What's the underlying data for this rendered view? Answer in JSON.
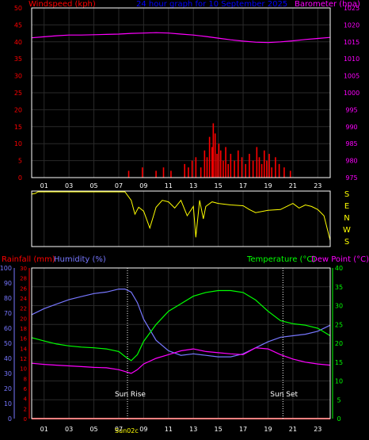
{
  "header": {
    "windspeed_label": "Windspeed (kph)",
    "title": "24 hour graph for  10 September 2025",
    "barometer_label": "Barometer (hpa)"
  },
  "wind_panel": {
    "compass_letters": [
      "S",
      "E",
      "N",
      "W",
      "S"
    ]
  },
  "bottom_header": {
    "rainfall_label": "Rainfall (mm)",
    "humidity_label": "Humidity (%)",
    "temperature_label": "Temperature (°C)",
    "dewpoint_label": "Dew Point (°C)"
  },
  "annotations": {
    "sunrise": "Sun Rise",
    "sunset": "Sun Set",
    "sunrise_time": "Sun02c"
  },
  "colors": {
    "wind": "#ff0000",
    "barometer": "#ff00ff",
    "direction": "#ffff00",
    "humidity": "#7777ff",
    "temperature": "#00ff00",
    "dewpoint": "#ff00ff",
    "rain": "#ff0000",
    "title": "#0000ff",
    "grid": "#2a2a2a"
  },
  "chart_data": [
    {
      "type": "bar",
      "title": "24 hour graph for  10 September 2025",
      "x_tick_labels": [
        "01",
        "03",
        "05",
        "07",
        "09",
        "11",
        "13",
        "15",
        "17",
        "19",
        "21",
        "23"
      ],
      "xlim": [
        0,
        24
      ],
      "y_left": {
        "label": "Windspeed (kph)",
        "ylim": [
          0,
          50
        ],
        "ticks": [
          0,
          5,
          10,
          15,
          20,
          25,
          30,
          35,
          40,
          45,
          50
        ]
      },
      "y_right": {
        "label": "Barometer (hpa)",
        "ylim": [
          975,
          1025
        ],
        "ticks": [
          975,
          980,
          985,
          990,
          995,
          1000,
          1005,
          1010,
          1015,
          1020,
          1025
        ]
      },
      "series": [
        {
          "name": "Windspeed (kph)",
          "type": "bar",
          "x": [
            7.8,
            8.9,
            10.0,
            10.6,
            11.2,
            12.3,
            12.6,
            12.9,
            13.2,
            13.6,
            13.9,
            14.1,
            14.3,
            14.5,
            14.6,
            14.75,
            14.9,
            15.05,
            15.2,
            15.4,
            15.6,
            15.8,
            16.0,
            16.3,
            16.6,
            16.9,
            17.2,
            17.5,
            17.8,
            18.1,
            18.3,
            18.5,
            18.7,
            18.9,
            19.1,
            19.3,
            19.6,
            19.9,
            20.3,
            20.8
          ],
          "values": [
            2,
            3,
            2,
            3,
            2,
            4,
            3,
            5,
            6,
            3,
            8,
            6,
            12,
            9,
            16,
            13,
            7,
            10,
            8,
            5,
            9,
            4,
            7,
            5,
            8,
            6,
            4,
            7,
            5,
            9,
            6,
            4,
            8,
            5,
            7,
            3,
            6,
            4,
            3,
            2
          ]
        },
        {
          "name": "Barometer (hpa)",
          "type": "line",
          "x": [
            0,
            1,
            2,
            3,
            4,
            5,
            6,
            7,
            8,
            9,
            10,
            11,
            12,
            13,
            14,
            15,
            16,
            17,
            18,
            19,
            20,
            21,
            22,
            23,
            24
          ],
          "values": [
            1016.2,
            1016.5,
            1016.8,
            1017.0,
            1017.0,
            1017.1,
            1017.2,
            1017.3,
            1017.5,
            1017.6,
            1017.7,
            1017.6,
            1017.3,
            1017.0,
            1016.6,
            1016.1,
            1015.6,
            1015.2,
            1014.9,
            1014.8,
            1015.0,
            1015.3,
            1015.7,
            1016.0,
            1016.3
          ]
        }
      ]
    },
    {
      "type": "line",
      "x_tick_labels": [
        "01",
        "03",
        "05",
        "07",
        "09",
        "11",
        "13",
        "15",
        "17",
        "19",
        "21",
        "23"
      ],
      "xlim": [
        0,
        24
      ],
      "y_directions": [
        "S",
        "E",
        "N",
        "W",
        "S"
      ],
      "series": [
        {
          "name": "Wind direction",
          "x": [
            0,
            0.3,
            0.5,
            1,
            2,
            3,
            4,
            5,
            6,
            7,
            7.5,
            8,
            8.3,
            8.6,
            9,
            9.5,
            10,
            10.5,
            11,
            11.5,
            12,
            12.5,
            13,
            13.2,
            13.5,
            13.8,
            14,
            14.5,
            15,
            16,
            17,
            17.5,
            18,
            19,
            20,
            20.5,
            21,
            21.5,
            22,
            22.5,
            23,
            23.5,
            24
          ],
          "values": [
            340,
            345,
            355,
            355,
            355,
            355,
            355,
            355,
            355,
            355,
            355,
            300,
            210,
            255,
            230,
            120,
            255,
            300,
            290,
            250,
            300,
            200,
            260,
            60,
            300,
            180,
            260,
            290,
            280,
            270,
            265,
            240,
            220,
            235,
            240,
            260,
            280,
            250,
            270,
            260,
            240,
            200,
            40
          ]
        }
      ]
    },
    {
      "type": "line",
      "sunrise_hour": 7.7,
      "sunset_hour": 20.2,
      "x_tick_labels": [
        "01",
        "03",
        "05",
        "07",
        "09",
        "11",
        "13",
        "15",
        "17",
        "19",
        "21",
        "23"
      ],
      "xlim": [
        0,
        24
      ],
      "y_humidity": {
        "label": "Humidity (%)",
        "ylim": [
          0,
          100
        ],
        "ticks": [
          0,
          10,
          20,
          30,
          40,
          50,
          60,
          70,
          80,
          90,
          100
        ]
      },
      "y_rain": {
        "label": "Rainfall (mm)",
        "ylim": [
          0,
          30
        ],
        "ticks": [
          0,
          2,
          4,
          6,
          8,
          10,
          12,
          14,
          16,
          18,
          20,
          22,
          24,
          26,
          28,
          30
        ]
      },
      "y_temp": {
        "label": "Temperature (°C)",
        "ylim": [
          0,
          40
        ],
        "ticks": [
          0,
          5,
          10,
          15,
          20,
          25,
          30,
          35,
          40
        ]
      },
      "series": [
        {
          "name": "Humidity (%)",
          "x": [
            0,
            1,
            2,
            3,
            4,
            5,
            6,
            7,
            7.5,
            8,
            8.5,
            9,
            10,
            11,
            12,
            13,
            14,
            15,
            16,
            17,
            18,
            19,
            20,
            21,
            22,
            23,
            24
          ],
          "values": [
            69,
            73,
            76,
            79,
            81,
            83,
            84,
            86,
            86,
            84,
            77,
            66,
            52,
            45,
            42,
            43,
            42,
            41,
            41,
            43,
            47,
            51,
            54,
            55,
            56,
            58,
            62
          ]
        },
        {
          "name": "Temperature (°C)",
          "x": [
            0,
            1,
            2,
            3,
            4,
            5,
            6,
            7,
            7.5,
            8,
            8.5,
            9,
            10,
            11,
            12,
            13,
            14,
            15,
            16,
            17,
            18,
            19,
            20,
            21,
            22,
            23,
            24
          ],
          "values": [
            21.5,
            20.6,
            19.8,
            19.3,
            19.0,
            18.8,
            18.5,
            17.8,
            16.5,
            15.4,
            17.0,
            20.5,
            25.0,
            28.5,
            30.5,
            32.5,
            33.5,
            34.0,
            34.0,
            33.5,
            31.5,
            28.5,
            26.0,
            25.2,
            24.8,
            24.0,
            22.0
          ]
        },
        {
          "name": "Dew Point (°C)",
          "x": [
            0,
            1,
            2,
            3,
            4,
            5,
            6,
            7,
            7.5,
            8,
            8.5,
            9,
            10,
            11,
            12,
            13,
            14,
            15,
            16,
            17,
            18,
            19,
            20,
            21,
            22,
            23,
            24
          ],
          "values": [
            14.7,
            14.4,
            14.2,
            14.0,
            13.8,
            13.6,
            13.5,
            13.0,
            12.5,
            12.0,
            13.0,
            14.5,
            16.0,
            17.0,
            18.0,
            18.5,
            17.8,
            17.5,
            17.2,
            17.0,
            18.8,
            18.5,
            17.0,
            15.8,
            15.0,
            14.5,
            14.2
          ]
        },
        {
          "name": "Rainfall (mm)",
          "x": [
            0,
            24
          ],
          "values": [
            0,
            0
          ]
        }
      ]
    }
  ]
}
